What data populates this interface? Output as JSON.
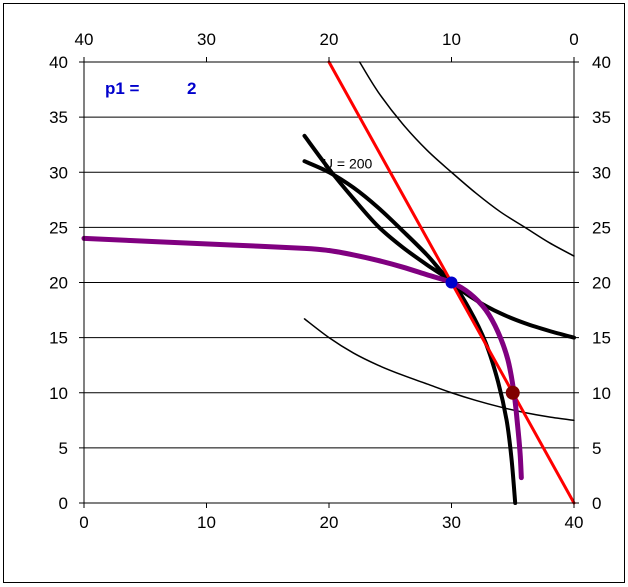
{
  "chart_data": {
    "type": "line",
    "title": "",
    "xlabel": "",
    "ylabel": "",
    "xlim": [
      0,
      40
    ],
    "ylim": [
      0,
      40
    ],
    "x_ticks": [
      0,
      10,
      20,
      30,
      40
    ],
    "y_ticks": [
      0,
      5,
      10,
      15,
      20,
      25,
      30,
      35,
      40
    ],
    "top_ticks": [
      "40",
      "30",
      "20",
      "10",
      "0"
    ],
    "right_ticks": [
      "40",
      "35",
      "30",
      "25",
      "20",
      "15",
      "10",
      "5",
      "0"
    ],
    "grid": "horizontal",
    "param": {
      "label": "p1 =",
      "value": "2"
    },
    "annotation": {
      "text": "U = 200",
      "x": 19.5,
      "y": 30.8
    },
    "colors": {
      "budget": "#ff0000",
      "offer": "#800080",
      "point_a": "#0000cc",
      "point_b": "#800000"
    },
    "series": [
      {
        "kind": "budget-line",
        "color": "#ff0000",
        "width": 3,
        "points": [
          [
            20,
            40
          ],
          [
            40,
            0
          ]
        ]
      },
      {
        "kind": "offer-curve",
        "color": "#800080",
        "width": 5,
        "points": [
          [
            0,
            24
          ],
          [
            6,
            23.7
          ],
          [
            12,
            23.4
          ],
          [
            18,
            23.1
          ],
          [
            20,
            22.9
          ],
          [
            22,
            22.5
          ],
          [
            24,
            22
          ],
          [
            26,
            21.4
          ],
          [
            28,
            20.7
          ],
          [
            30,
            20
          ],
          [
            31.5,
            19
          ],
          [
            32.8,
            17.5
          ],
          [
            33.8,
            15.5
          ],
          [
            34.6,
            13
          ],
          [
            35.1,
            10
          ],
          [
            35.4,
            7
          ],
          [
            35.6,
            4.5
          ],
          [
            35.7,
            2.3
          ]
        ]
      },
      {
        "kind": "indifference-thick-steep",
        "color": "#000000",
        "width": 4,
        "points": [
          [
            18,
            33.3
          ],
          [
            20,
            30.3
          ],
          [
            22,
            27.6
          ],
          [
            24,
            25.1
          ],
          [
            26,
            23.2
          ],
          [
            28,
            21.6
          ],
          [
            30,
            20
          ],
          [
            31.5,
            17.5
          ],
          [
            32.8,
            14.5
          ],
          [
            33.8,
            11
          ],
          [
            34.5,
            7.5
          ],
          [
            34.9,
            4
          ],
          [
            35.2,
            0
          ]
        ]
      },
      {
        "kind": "indifference-thick-flat",
        "color": "#000000",
        "width": 4,
        "points": [
          [
            18,
            31
          ],
          [
            20,
            30
          ],
          [
            22,
            28.6
          ],
          [
            24,
            26.8
          ],
          [
            26,
            24.7
          ],
          [
            28,
            22.5
          ],
          [
            30,
            20
          ],
          [
            32,
            18.4
          ],
          [
            34,
            17.2
          ],
          [
            36,
            16.3
          ],
          [
            38,
            15.6
          ],
          [
            40,
            15
          ]
        ]
      },
      {
        "kind": "indifference-thin-upper",
        "color": "#000000",
        "width": 1.5,
        "points": [
          [
            22.5,
            40
          ],
          [
            24,
            37.3
          ],
          [
            26,
            34.4
          ],
          [
            28,
            32
          ],
          [
            30,
            30
          ],
          [
            32,
            28.1
          ],
          [
            34,
            26.4
          ],
          [
            36,
            25
          ],
          [
            38,
            23.6
          ],
          [
            40,
            22.4
          ]
        ]
      },
      {
        "kind": "indifference-thin-lower",
        "color": "#000000",
        "width": 1.5,
        "points": [
          [
            18,
            16.7
          ],
          [
            20,
            15
          ],
          [
            22,
            13.6
          ],
          [
            24,
            12.5
          ],
          [
            26,
            11.6
          ],
          [
            28,
            10.8
          ],
          [
            30,
            10
          ],
          [
            32,
            9.3
          ],
          [
            34,
            8.7
          ],
          [
            36,
            8.2
          ],
          [
            38,
            7.8
          ],
          [
            40,
            7.5
          ]
        ]
      }
    ],
    "markers": [
      {
        "x": 30,
        "y": 20,
        "color": "#0000cc",
        "r": 6
      },
      {
        "x": 35,
        "y": 10,
        "color": "#800000",
        "r": 7
      }
    ]
  }
}
